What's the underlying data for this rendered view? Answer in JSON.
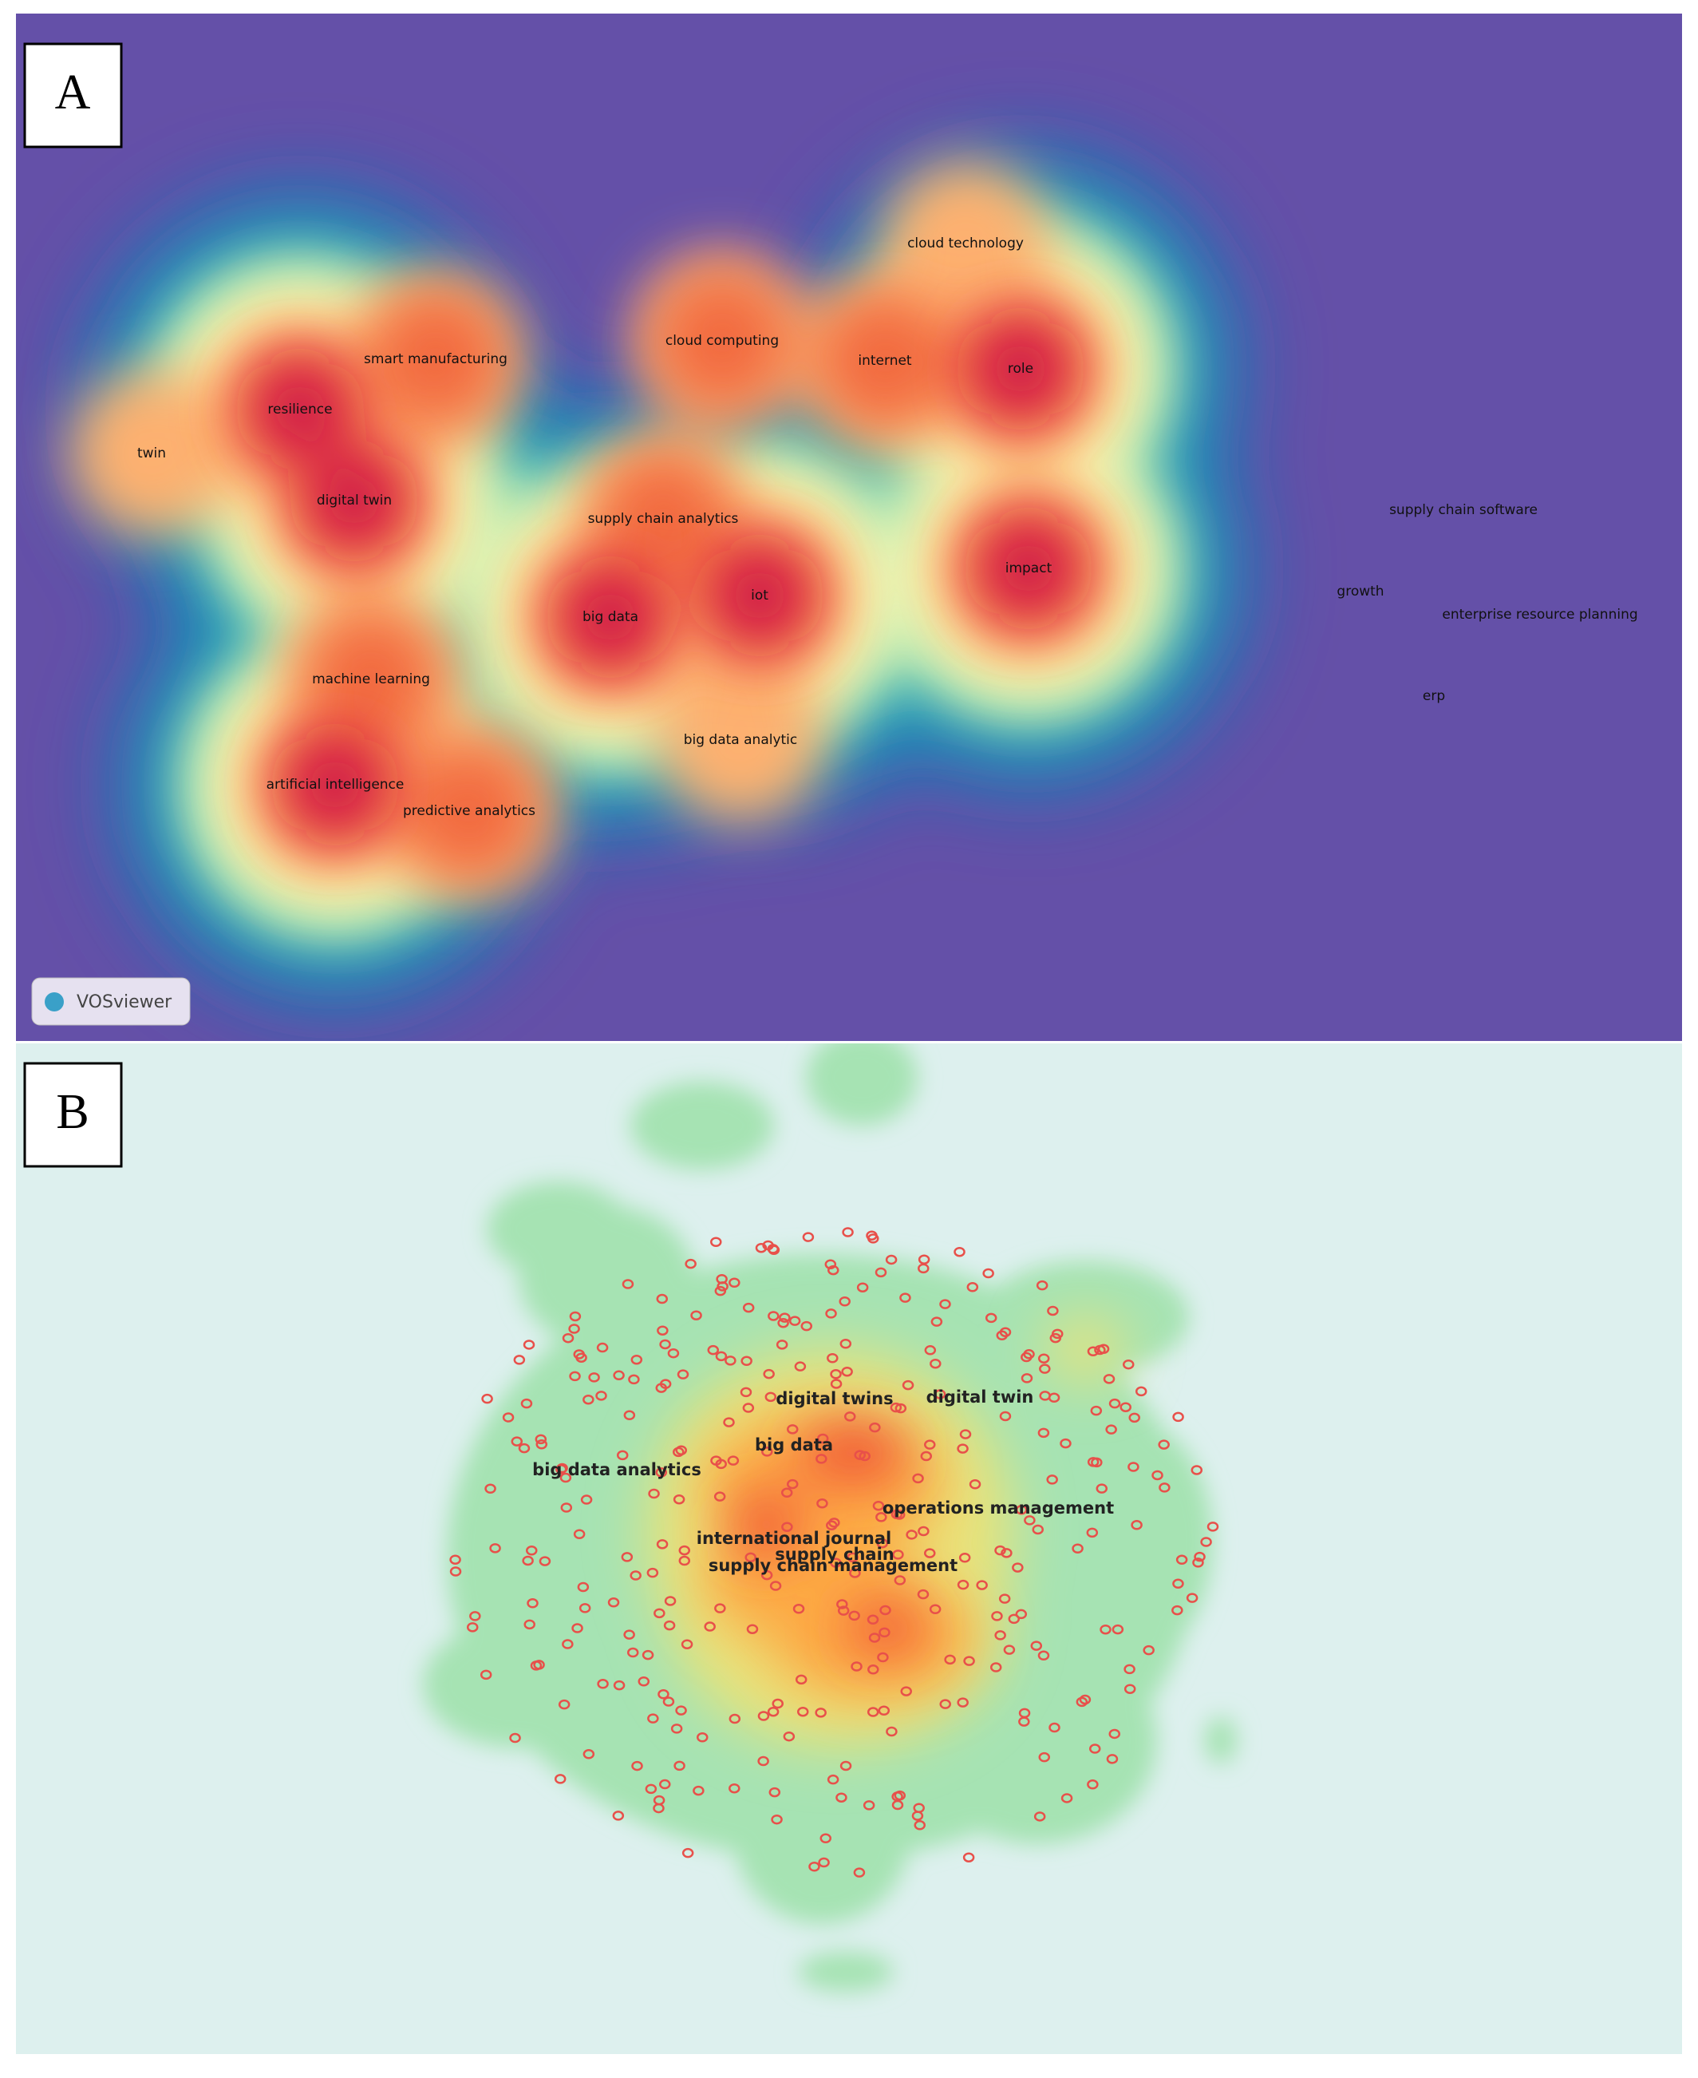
{
  "panels": [
    {
      "label": "A",
      "badge": "VOSviewer",
      "terms": [
        "twin",
        "resilience",
        "smart manufacturing",
        "digital twin",
        "cloud computing",
        "internet",
        "role",
        "cloud technology",
        "supply chain analytics",
        "big data",
        "iot",
        "impact",
        "machine learning",
        "artificial intelligence",
        "predictive analytics",
        "big data analytic",
        "supply chain software",
        "growth",
        "enterprise resource planning",
        "erp"
      ]
    },
    {
      "label": "B",
      "terms": [
        "digital twins",
        "digital twin",
        "big data",
        "big data analytics",
        "operations management",
        "international journal",
        "supply chain",
        "supply chain management"
      ]
    }
  ]
}
